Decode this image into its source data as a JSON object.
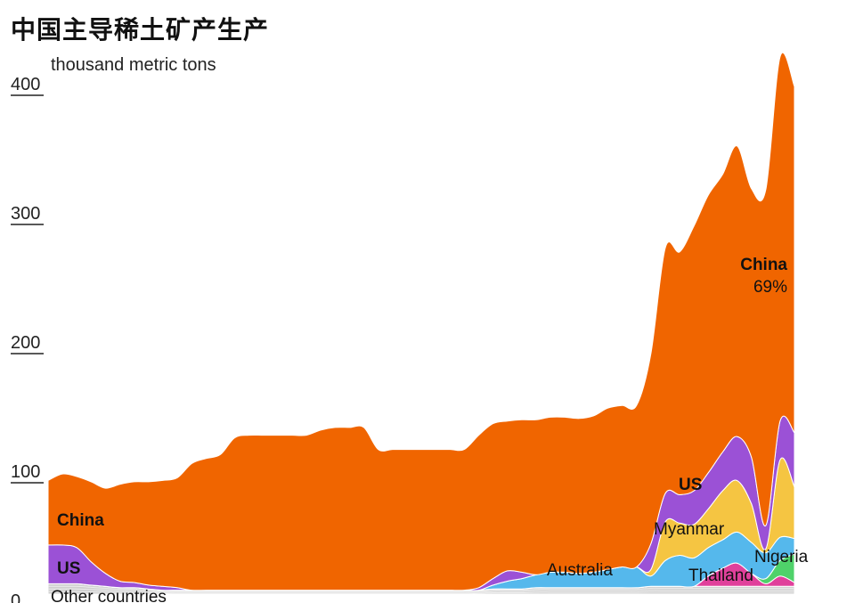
{
  "title": "中国主导稀土矿产生产",
  "chart_data": {
    "type": "area",
    "title": "中国主导稀土矿产生产",
    "unit_label": "thousand metric tons",
    "ylim": [
      0,
      400
    ],
    "yticks": [
      0,
      100,
      200,
      300,
      400
    ],
    "x": [
      0,
      1,
      2,
      3,
      4,
      5,
      6,
      7,
      8,
      9,
      10,
      11,
      12,
      13,
      14,
      15,
      16,
      17,
      18,
      19,
      20,
      21,
      22,
      23,
      24,
      25,
      26,
      27,
      28,
      29,
      30,
      31,
      32,
      33,
      34,
      35,
      36,
      37,
      38,
      39,
      40,
      41,
      42,
      43,
      44,
      45,
      46,
      47,
      48,
      49,
      50,
      51,
      52
    ],
    "series": [
      {
        "name": "Other countries",
        "color": "#cfcfcf",
        "values": [
          8,
          8,
          8,
          7,
          6,
          5,
          5,
          4,
          3,
          3,
          3,
          3,
          3,
          3,
          3,
          3,
          3,
          3,
          3,
          3,
          3,
          3,
          3,
          3,
          3,
          3,
          3,
          3,
          3,
          3,
          3,
          4,
          4,
          4,
          5,
          5,
          5,
          5,
          5,
          5,
          5,
          5,
          6,
          6,
          6,
          6,
          6,
          6,
          6,
          6,
          6,
          6,
          6
        ]
      },
      {
        "name": "Thailand",
        "color": "#e0409b",
        "values": [
          0,
          0,
          0,
          0,
          0,
          0,
          0,
          0,
          0,
          0,
          0,
          0,
          0,
          0,
          0,
          0,
          0,
          0,
          0,
          0,
          0,
          0,
          0,
          0,
          0,
          0,
          0,
          0,
          0,
          0,
          0,
          0,
          0,
          0,
          0,
          0,
          0,
          0,
          0,
          0,
          0,
          0,
          0,
          0,
          0,
          0,
          8,
          14,
          18,
          10,
          2,
          8,
          3
        ]
      },
      {
        "name": "Nigeria",
        "color": "#4fd26a",
        "values": [
          0,
          0,
          0,
          0,
          0,
          0,
          0,
          0,
          0,
          0,
          0,
          0,
          0,
          0,
          0,
          0,
          0,
          0,
          0,
          0,
          0,
          0,
          0,
          0,
          0,
          0,
          0,
          0,
          0,
          0,
          0,
          0,
          0,
          0,
          0,
          0,
          0,
          0,
          0,
          0,
          0,
          0,
          0,
          0,
          0,
          0,
          0,
          0,
          0,
          0,
          4,
          12,
          22
        ]
      },
      {
        "name": "Australia",
        "color": "#55b8ec",
        "values": [
          0,
          0,
          0,
          0,
          0,
          0,
          0,
          0,
          0,
          0,
          0,
          0,
          0,
          0,
          0,
          0,
          0,
          0,
          0,
          0,
          0,
          0,
          0,
          0,
          0,
          0,
          0,
          0,
          0,
          0,
          0,
          3,
          6,
          8,
          10,
          12,
          12,
          11,
          12,
          14,
          16,
          16,
          8,
          20,
          24,
          22,
          22,
          22,
          24,
          24,
          20,
          18,
          12
        ]
      },
      {
        "name": "Myanmar",
        "color": "#f5c542",
        "values": [
          0,
          0,
          0,
          0,
          0,
          0,
          0,
          0,
          0,
          0,
          0,
          0,
          0,
          0,
          0,
          0,
          0,
          0,
          0,
          0,
          0,
          0,
          0,
          0,
          0,
          0,
          0,
          0,
          0,
          0,
          0,
          0,
          0,
          0,
          0,
          0,
          0,
          0,
          0,
          0,
          0,
          0,
          5,
          30,
          25,
          26,
          30,
          38,
          40,
          30,
          3,
          60,
          40
        ]
      },
      {
        "name": "US",
        "color": "#9b51d6",
        "values": [
          30,
          30,
          28,
          18,
          10,
          5,
          4,
          3,
          3,
          2,
          0,
          0,
          0,
          0,
          0,
          0,
          0,
          0,
          0,
          0,
          0,
          0,
          0,
          0,
          0,
          0,
          0,
          0,
          0,
          0,
          2,
          5,
          8,
          5,
          0,
          0,
          0,
          0,
          0,
          0,
          0,
          0,
          20,
          22,
          22,
          26,
          28,
          30,
          34,
          36,
          18,
          30,
          42
        ]
      },
      {
        "name": "China",
        "color": "#f06500",
        "values": [
          50,
          55,
          55,
          62,
          66,
          75,
          78,
          80,
          82,
          85,
          98,
          102,
          105,
          118,
          120,
          120,
          120,
          120,
          120,
          124,
          126,
          126,
          126,
          109,
          109,
          109,
          109,
          109,
          109,
          109,
          118,
          120,
          116,
          118,
          120,
          120,
          120,
          120,
          121,
          125,
          125,
          125,
          147,
          190,
          188,
          205,
          215,
          215,
          225,
          208,
          260,
          282,
          268
        ]
      }
    ],
    "annotations": [
      {
        "text": "China",
        "series": "China"
      },
      {
        "text": "69%",
        "series": "China"
      },
      {
        "text": "US",
        "series": "US"
      },
      {
        "text": "Myanmar",
        "series": "Myanmar"
      },
      {
        "text": "Australia",
        "series": "Australia"
      },
      {
        "text": "Thailand",
        "series": "Thailand"
      },
      {
        "text": "Nigeria",
        "series": "Nigeria"
      },
      {
        "text": "Other countries",
        "series": "Other countries"
      }
    ]
  }
}
